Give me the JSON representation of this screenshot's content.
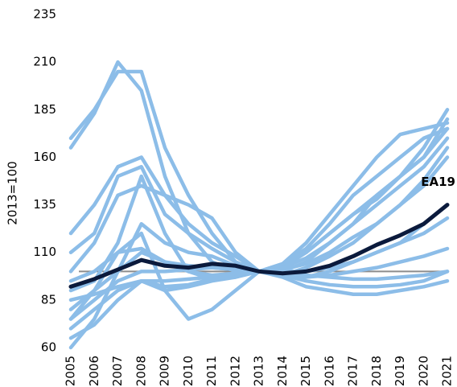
{
  "chart_data": {
    "type": "line",
    "y_label": "2013=100",
    "x": [
      2005,
      2006,
      2007,
      2008,
      2009,
      2010,
      2011,
      2012,
      2013,
      2014,
      2015,
      2016,
      2017,
      2018,
      2019,
      2020,
      2021
    ],
    "xlim": [
      2005,
      2021
    ],
    "xticks": [
      2005,
      2006,
      2007,
      2008,
      2009,
      2010,
      2011,
      2012,
      2013,
      2014,
      2015,
      2016,
      2017,
      2018,
      2019,
      2020,
      2021
    ],
    "ylim": [
      60,
      235
    ],
    "yticks": [
      60,
      85,
      110,
      135,
      160,
      185,
      210,
      235
    ],
    "reference_line": {
      "value": 100,
      "color": "#8c8c8c"
    },
    "grid": false,
    "series": [
      {
        "color": "#8cbde8",
        "values": [
          165,
          183,
          210,
          195,
          150,
          120,
          105,
          100,
          100,
          103,
          110,
          120,
          130,
          140,
          150,
          160,
          175
        ]
      },
      {
        "color": "#8cbde8",
        "values": [
          170,
          185,
          205,
          205,
          165,
          140,
          120,
          105,
          100,
          98,
          97,
          100,
          105,
          110,
          115,
          125,
          135
        ]
      },
      {
        "color": "#8cbde8",
        "values": [
          120,
          135,
          155,
          160,
          140,
          125,
          115,
          108,
          100,
          104,
          115,
          130,
          145,
          160,
          172,
          175,
          178
        ]
      },
      {
        "color": "#8cbde8",
        "values": [
          110,
          120,
          150,
          155,
          130,
          120,
          112,
          105,
          100,
          100,
          105,
          115,
          125,
          140,
          150,
          165,
          185
        ]
      },
      {
        "color": "#8cbde8",
        "values": [
          100,
          115,
          140,
          145,
          140,
          135,
          128,
          110,
          100,
          98,
          102,
          108,
          115,
          125,
          135,
          148,
          165
        ]
      },
      {
        "color": "#8cbde8",
        "values": [
          60,
          75,
          100,
          125,
          115,
          110,
          108,
          103,
          100,
          102,
          110,
          120,
          130,
          138,
          150,
          160,
          180
        ]
      },
      {
        "color": "#8cbde8",
        "values": [
          75,
          90,
          110,
          120,
          90,
          75,
          80,
          90,
          100,
          102,
          107,
          115,
          125,
          135,
          145,
          155,
          170
        ]
      },
      {
        "color": "#8cbde8",
        "values": [
          80,
          90,
          100,
          110,
          105,
          103,
          102,
          101,
          100,
          98,
          97,
          98,
          100,
          102,
          105,
          108,
          112
        ]
      },
      {
        "color": "#8cbde8",
        "values": [
          85,
          88,
          92,
          95,
          95,
          96,
          97,
          98,
          100,
          100,
          100,
          102,
          105,
          110,
          115,
          120,
          128
        ]
      },
      {
        "color": "#8cbde8",
        "values": [
          70,
          80,
          90,
          95,
          90,
          92,
          95,
          97,
          100,
          99,
          98,
          97,
          96,
          96,
          97,
          98,
          100
        ]
      },
      {
        "color": "#8cbde8",
        "values": [
          65,
          72,
          85,
          95,
          92,
          93,
          96,
          98,
          100,
          97,
          92,
          90,
          88,
          88,
          90,
          92,
          95
        ]
      },
      {
        "color": "#8cbde8",
        "values": [
          95,
          100,
          110,
          112,
          105,
          100,
          98,
          99,
          100,
          101,
          104,
          110,
          118,
          125,
          135,
          145,
          160
        ]
      },
      {
        "color": "#8cbde8",
        "values": [
          90,
          95,
          115,
          150,
          120,
          100,
          96,
          97,
          100,
          104,
          112,
          125,
          140,
          150,
          160,
          170,
          175
        ]
      },
      {
        "color": "#8cbde8",
        "values": [
          75,
          85,
          95,
          100,
          100,
          101,
          102,
          101,
          100,
          98,
          95,
          93,
          92,
          92,
          93,
          95,
          100
        ]
      },
      {
        "name": "EA19",
        "color": "#0b1a3c",
        "values": [
          92,
          96,
          101,
          106,
          103,
          102,
          104,
          103,
          100,
          99,
          100,
          103,
          108,
          114,
          119,
          125,
          135
        ]
      }
    ]
  }
}
